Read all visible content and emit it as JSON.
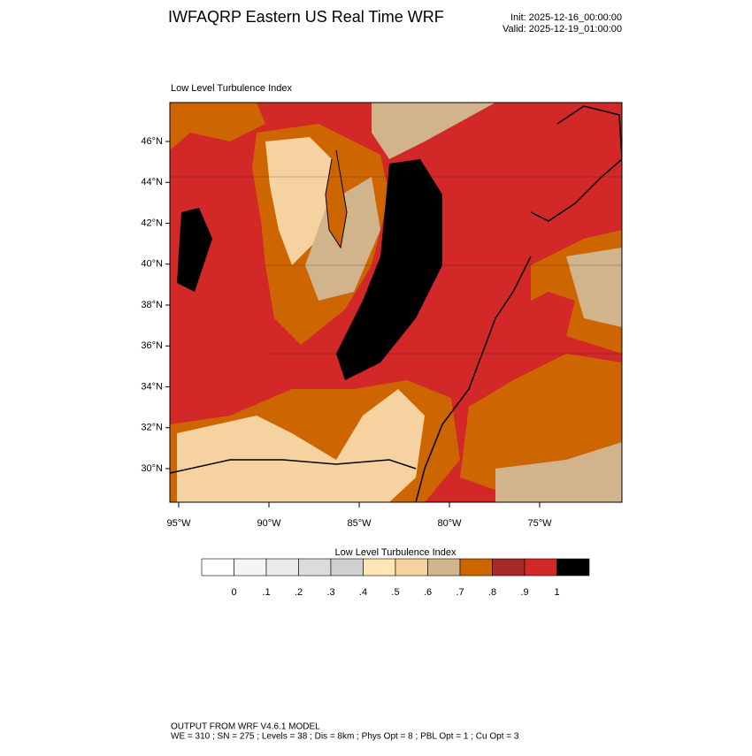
{
  "header": {
    "title": "IWFAQRP Eastern US Real Time WRF",
    "init": "Init: 2025-12-16_00:00:00",
    "valid": "Valid: 2025-12-19_01:00:00"
  },
  "map": {
    "title": "Low Level Turbulence Index",
    "lat_labels": [
      "46°N",
      "44°N",
      "42°N",
      "40°N",
      "38°N",
      "36°N",
      "34°N",
      "32°N",
      "30°N"
    ],
    "lon_labels": [
      "95°W",
      "90°W",
      "85°W",
      "80°W",
      "75°W"
    ]
  },
  "colorbar": {
    "title": "Low Level Turbulence Index",
    "colors": [
      "#ffffff",
      "#f5f5f5",
      "#ebebeb",
      "#dcdcdc",
      "#d0d0d0",
      "#ffe6b4",
      "#f5d2a0",
      "#d2b48c",
      "#cd6600",
      "#a52a2a",
      "#d22828",
      "#000000"
    ],
    "labels": [
      "0",
      ".1",
      ".2",
      ".3",
      ".4",
      ".5",
      ".6",
      ".7",
      ".8",
      ".9",
      "1"
    ]
  },
  "footer": {
    "line1": "OUTPUT FROM WRF V4.6.1 MODEL",
    "line2": "WE = 310 ; SN = 275 ; Levels = 38 ; Dis = 8km ; Phys Opt = 8 ; PBL Opt = 1 ; Cu Opt = 3"
  }
}
